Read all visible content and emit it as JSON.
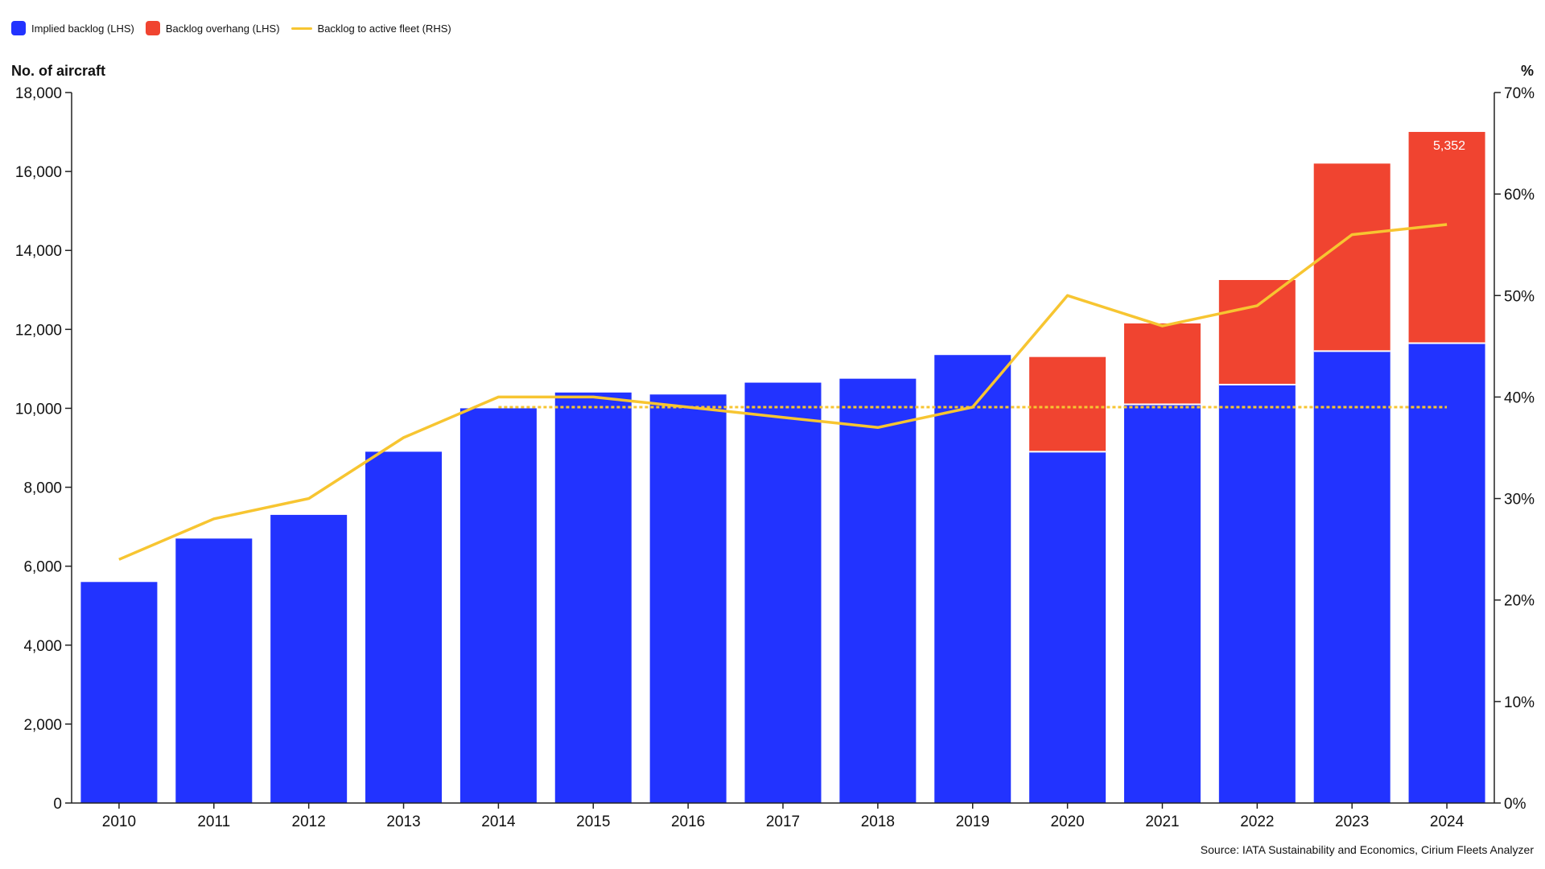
{
  "chart_data": {
    "type": "bar",
    "categories": [
      "2010",
      "2011",
      "2012",
      "2013",
      "2014",
      "2015",
      "2016",
      "2017",
      "2018",
      "2019",
      "2020",
      "2021",
      "2022",
      "2023",
      "2024"
    ],
    "series": [
      {
        "name": "Implied backlog (LHS)",
        "kind": "bar",
        "axis": "left",
        "color": "#2233ff",
        "values": [
          5600,
          6700,
          7300,
          8900,
          10000,
          10400,
          10350,
          10650,
          10750,
          11350,
          8900,
          10100,
          10600,
          11450,
          11650
        ]
      },
      {
        "name": "Backlog overhang (LHS)",
        "kind": "bar",
        "axis": "left",
        "stacked": true,
        "color": "#f04430",
        "values": [
          0,
          0,
          0,
          0,
          0,
          0,
          0,
          0,
          0,
          0,
          2400,
          2050,
          2650,
          4750,
          5352
        ]
      },
      {
        "name": "Backlog to active fleet (RHS)",
        "kind": "line",
        "axis": "right",
        "color": "#f7c531",
        "values": [
          24,
          28,
          30,
          36,
          40,
          40,
          39,
          38,
          37,
          39,
          50,
          47,
          49,
          56,
          57
        ]
      }
    ],
    "reference_line": {
      "value": 39,
      "axis": "right",
      "from": "2014",
      "to": "2024",
      "style": "dotted",
      "color": "#f7c531"
    },
    "annotations": [
      {
        "category": "2024",
        "series": "Backlog overhang (LHS)",
        "text": "5,352"
      }
    ],
    "left_axis": {
      "label": "No. of aircraft",
      "ylim": [
        0,
        18000
      ],
      "ticks": [
        "0",
        "2,000",
        "4,000",
        "6,000",
        "8,000",
        "10,000",
        "12,000",
        "14,000",
        "16,000",
        "18,000"
      ]
    },
    "right_axis": {
      "label": "%",
      "ylim": [
        0,
        70
      ],
      "ticks": [
        "0%",
        "10%",
        "20%",
        "30%",
        "40%",
        "50%",
        "60%",
        "70%"
      ]
    },
    "grid": false,
    "legend_position": "top-left",
    "source": "Source: IATA Sustainability and Economics, Cirium Fleets Analyzer"
  }
}
